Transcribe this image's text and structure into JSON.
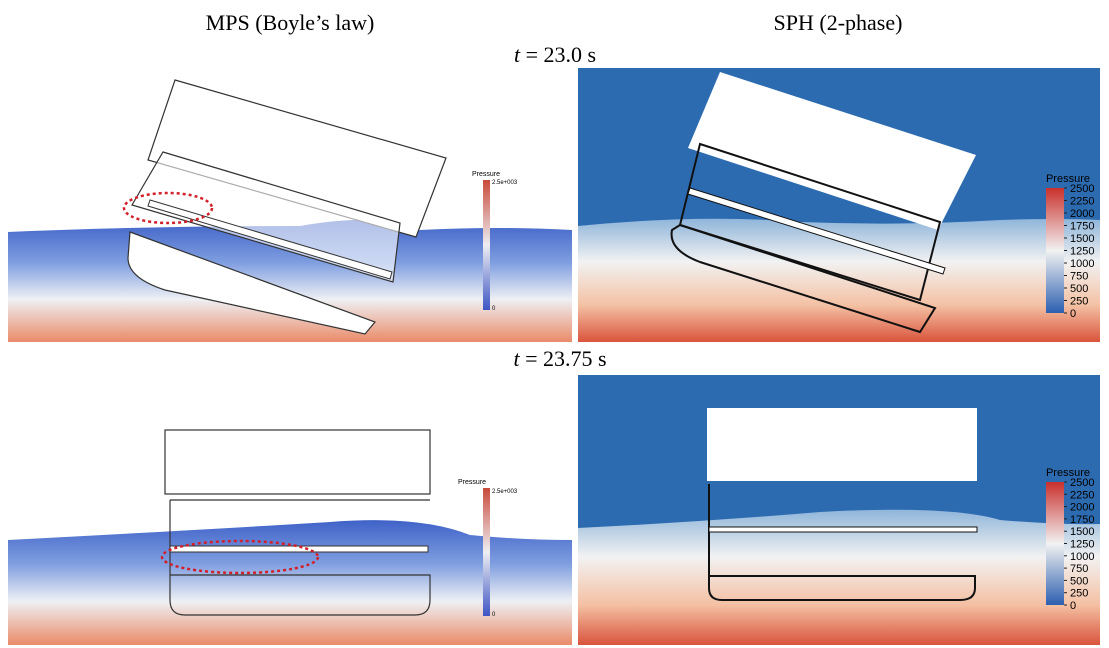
{
  "columns": [
    "MPS (Boyle’s law)",
    "SPH (2-phase)"
  ],
  "rows": [
    {
      "time_var": "t",
      "time_text": "= 23.0 s"
    },
    {
      "time_var": "t",
      "time_text": "= 23.75 s"
    }
  ],
  "mps_colorbar": {
    "title": "Pressure",
    "max_label": "2.5e+003",
    "min_label": "0"
  },
  "sph_colorbar": {
    "title": "Pressure",
    "ticks": [
      2500,
      2250,
      2000,
      1750,
      1500,
      1250,
      1000,
      750,
      500,
      250,
      0
    ]
  }
}
